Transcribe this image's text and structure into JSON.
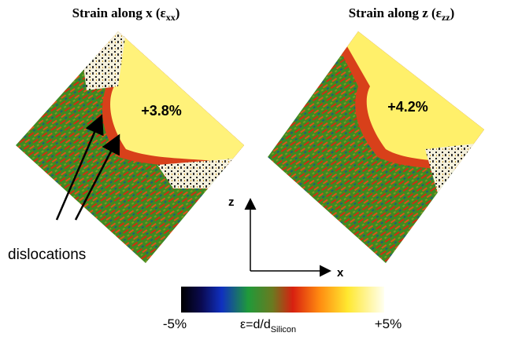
{
  "panels": [
    {
      "title": "Strain along x (ε",
      "title_sub": "xx",
      "title_end": ")",
      "value": "+3.8%"
    },
    {
      "title": "Strain along z (ε",
      "title_sub": "zz",
      "title_end": ")",
      "value": "+4.2%"
    }
  ],
  "annotation": "dislocations",
  "axes": {
    "z": "z",
    "x": "x"
  },
  "colorbar": {
    "min_label": "-5%",
    "max_label": "+5%",
    "formula": "ε=d/d",
    "formula_sub": "Silicon"
  }
}
